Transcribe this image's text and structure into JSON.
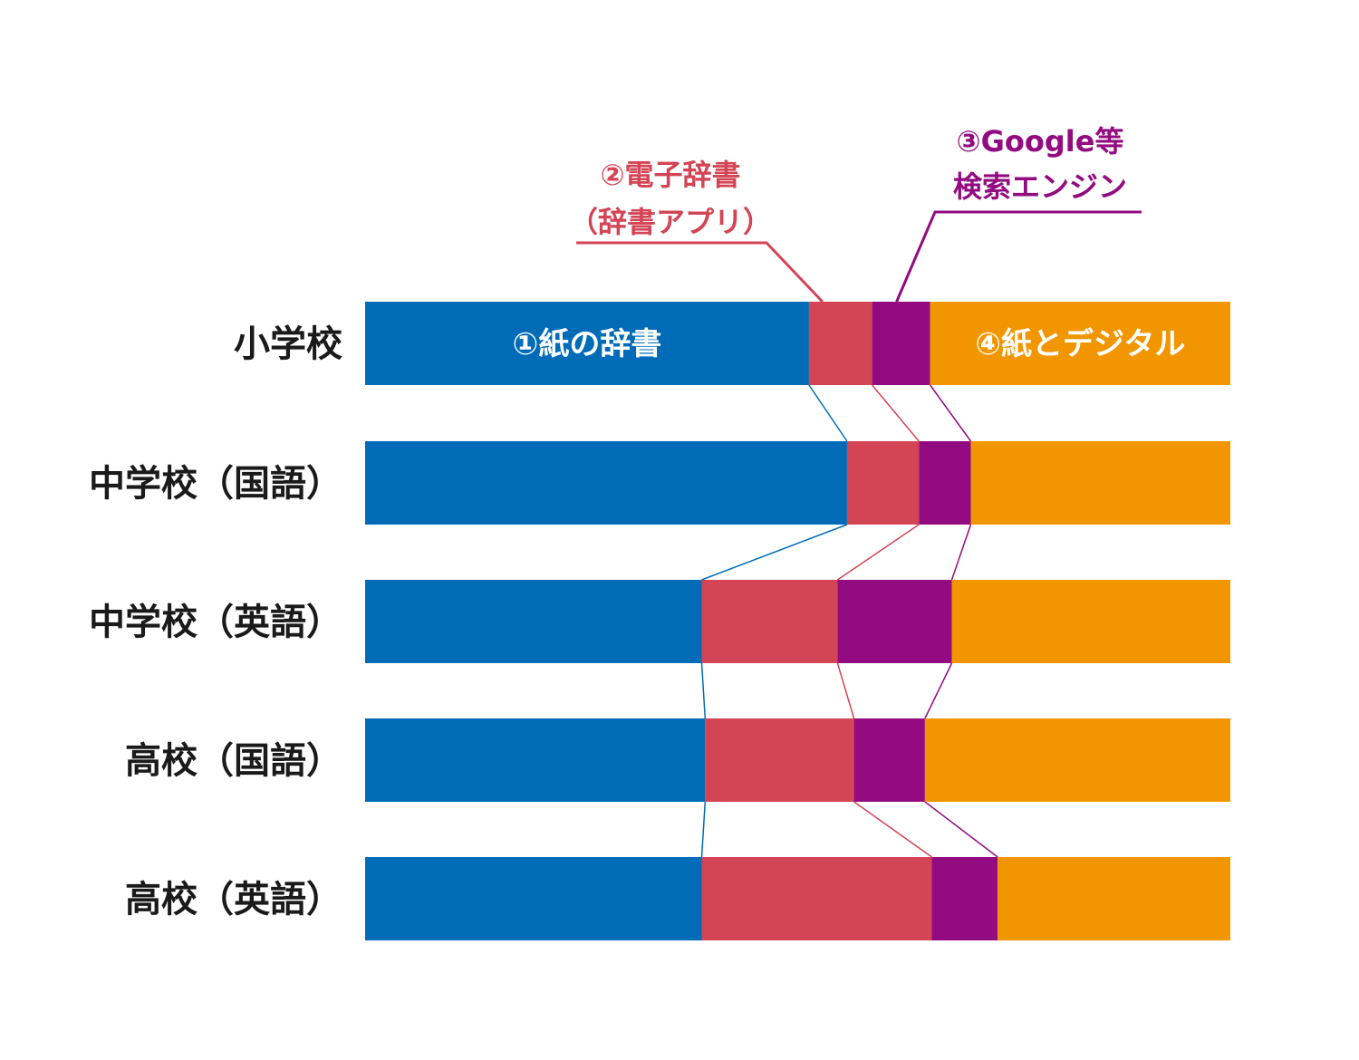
{
  "chart_data": {
    "type": "bar",
    "stacked": true,
    "normalized": true,
    "orientation": "horizontal",
    "categories": [
      "小学校",
      "中学校（国語）",
      "中学校（英語）",
      "高校（国語）",
      "高校（英語）"
    ],
    "series": [
      {
        "name": "①紙の辞書",
        "color": "#006cb8",
        "values": [
          51.3,
          55.7,
          38.9,
          39.3,
          38.9
        ]
      },
      {
        "name": "②電子辞書（辞書アプリ）",
        "color": "#d34455",
        "values": [
          7.3,
          8.3,
          15.7,
          17.2,
          26.6
        ]
      },
      {
        "name": "③Google等検索エンジン",
        "color": "#930b80",
        "values": [
          6.7,
          6.0,
          13.2,
          8.2,
          7.6
        ]
      },
      {
        "name": "④紙とデジタル",
        "color": "#f29600",
        "values": [
          34.7,
          30.0,
          32.2,
          35.3,
          26.9
        ]
      }
    ],
    "legend": {
      "paper": "①紙の辞書",
      "electronic_line1": "②電子辞書",
      "electronic_line2": "（辞書アプリ）",
      "search_line1": "③Google等",
      "search_line2": "検索エンジン",
      "both": "④紙とデジタル"
    },
    "title": "",
    "xlabel": "",
    "ylabel": "",
    "xlim": [
      0,
      100
    ]
  }
}
